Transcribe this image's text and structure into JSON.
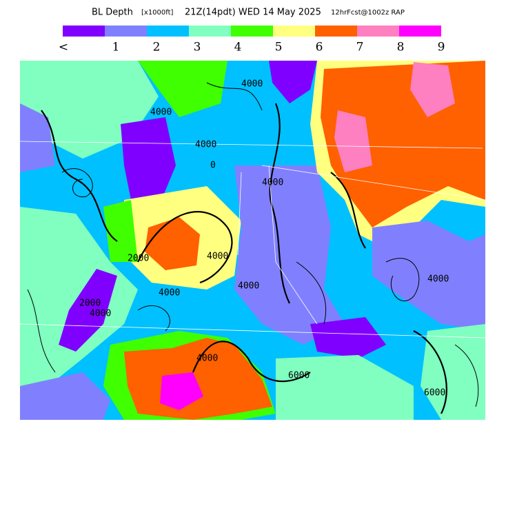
{
  "header": {
    "title": "BL Depth",
    "units": "[x1000ft]",
    "valid_time": "21Z(14pdt) WED 14 May 2025",
    "forecast": "12hrFcst@1002z RAP"
  },
  "legend": {
    "labels": [
      "<",
      "1",
      "2",
      "3",
      "4",
      "5",
      "6",
      "7",
      "8",
      "9"
    ],
    "colors": [
      "#8000ff",
      "#8080ff",
      "#00c0ff",
      "#80ffc0",
      "#40ff00",
      "#ffff80",
      "#ff6000",
      "#ff80c0",
      "#ff00ff"
    ]
  },
  "contour_labels": [
    "4000",
    "4000",
    "2000",
    "4000",
    "4000",
    "4000",
    "4000",
    "2000",
    "4000",
    "4000",
    "6000",
    "4000",
    "6000",
    "4000",
    "0"
  ]
}
